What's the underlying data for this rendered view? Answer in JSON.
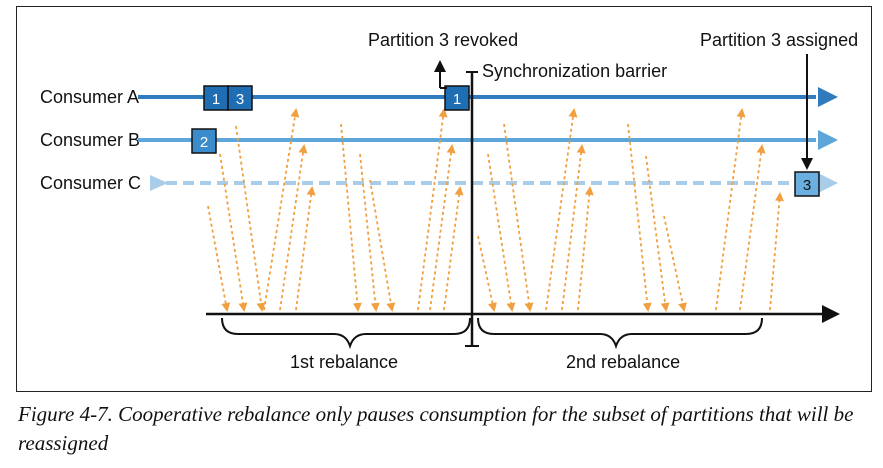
{
  "consumers": [
    {
      "name": "Consumer A",
      "line_color": "#2f7bbd",
      "style": "solid"
    },
    {
      "name": "Consumer B",
      "line_color": "#5ea6d8",
      "style": "solid"
    },
    {
      "name": "Consumer C",
      "line_color": "#a9cde9",
      "style": "dashed"
    }
  ],
  "partitions": {
    "a_initial": [
      "1",
      "3"
    ],
    "b_initial": [
      "2"
    ],
    "a_after": "1",
    "c_assigned": "3"
  },
  "annotations": {
    "revoked": "Partition 3 revoked",
    "barrier": "Synchronization barrier",
    "assigned": "Partition 3 assigned"
  },
  "phases": {
    "first": "1st rebalance",
    "second": "2nd rebalance"
  },
  "caption": "Figure 4-7. Cooperative rebalance only pauses consumption for the subset of partitions that will be reassigned",
  "colors": {
    "dark_blue": "#2f7bbd",
    "mid_blue": "#5ea6d8",
    "light_blue": "#a9cde9",
    "message_arrow": "#f0a040",
    "timeline": "#111111"
  }
}
